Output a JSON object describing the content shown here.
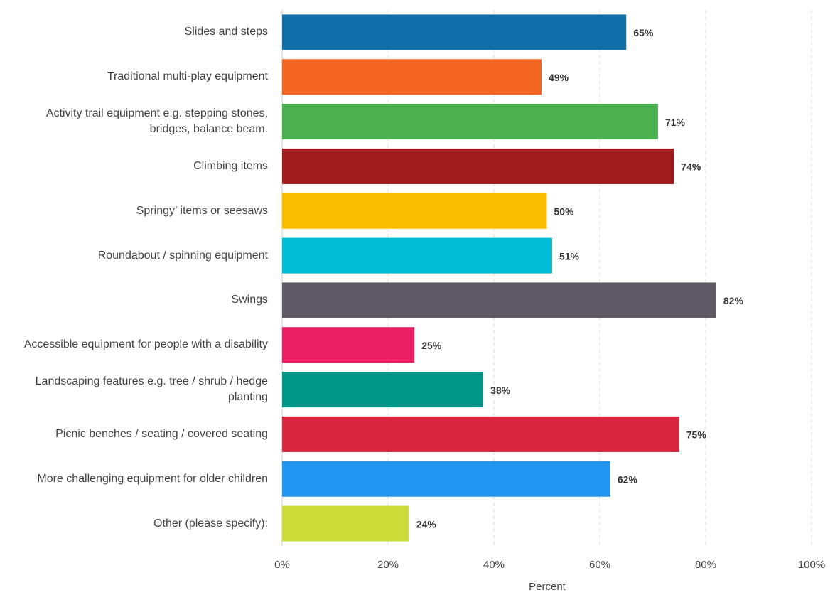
{
  "chart_data": {
    "type": "bar",
    "orientation": "horizontal",
    "categories": [
      "Slides and steps",
      "Traditional multi-play equipment",
      "Activity trail equipment e.g. stepping stones, bridges, balance beam.",
      "Climbing items",
      "Springy’ items or seesaws",
      "Roundabout / spinning equipment",
      "Swings",
      "Accessible equipment for people with a disability",
      "Landscaping features e.g. tree / shrub / hedge planting",
      "Picnic benches / seating / covered seating",
      "More challenging equipment for older children",
      "Other (please specify):"
    ],
    "values": [
      65,
      49,
      71,
      74,
      50,
      51,
      82,
      25,
      38,
      75,
      62,
      24
    ],
    "value_labels": [
      "65%",
      "49%",
      "71%",
      "74%",
      "50%",
      "51%",
      "82%",
      "25%",
      "38%",
      "75%",
      "62%",
      "24%"
    ],
    "colors": [
      "#106ea8",
      "#f26522",
      "#4caf50",
      "#a01c1f",
      "#fbbf00",
      "#00bcd4",
      "#5f5a63",
      "#e91e63",
      "#009688",
      "#d7263d",
      "#2196f3",
      "#cddc39"
    ],
    "xlim": [
      0,
      100
    ],
    "xticks": [
      {
        "value": 0,
        "label": "0%"
      },
      {
        "value": 20,
        "label": "20%"
      },
      {
        "value": 40,
        "label": "40%"
      },
      {
        "value": 60,
        "label": "60%"
      },
      {
        "value": 80,
        "label": "80%"
      },
      {
        "value": 100,
        "label": "100%"
      }
    ],
    "xlabel": "Percent",
    "grid": true
  }
}
